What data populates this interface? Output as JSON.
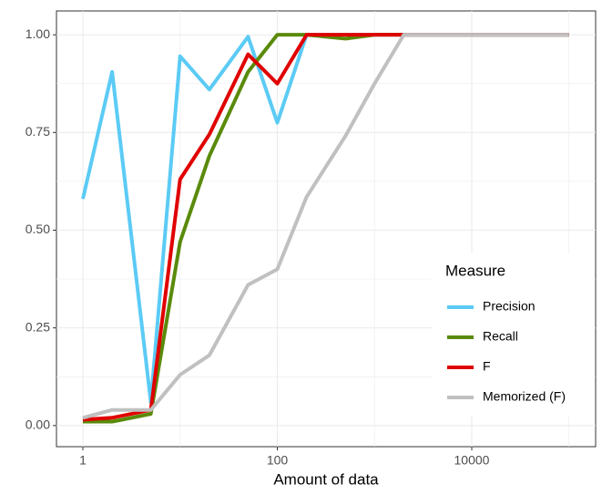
{
  "chart_data": {
    "type": "line",
    "x_label": "Amount of data",
    "x": [
      1,
      2,
      5,
      10,
      20,
      50,
      100,
      200,
      500,
      1000,
      2000,
      5000,
      10000,
      20000,
      50000,
      100000
    ],
    "xscale": "log",
    "xlim": [
      0.535,
      188000
    ],
    "xticks": [
      1,
      100,
      10000
    ],
    "ylim": [
      -0.054,
      1.061
    ],
    "yticks": [
      {
        "value": 0,
        "label": "0.00"
      },
      {
        "value": 0.25,
        "label": "0.25"
      },
      {
        "value": 0.5,
        "label": "0.50"
      },
      {
        "value": 0.75,
        "label": "0.75"
      },
      {
        "value": 1,
        "label": "1.00"
      }
    ],
    "grid": true,
    "legend_title": "Measure",
    "legend_position": "bottom-right",
    "series": [
      {
        "name": "Precision",
        "color": "#5bcbf5",
        "values": [
          0.58,
          0.905,
          0.06,
          0.945,
          0.86,
          0.995,
          0.775,
          1.0,
          1.0,
          1.0,
          1.0,
          1.0,
          1.0,
          1.0,
          1.0,
          1.0
        ]
      },
      {
        "name": "Recall",
        "color": "#5a8a0a",
        "values": [
          0.01,
          0.01,
          0.03,
          0.47,
          0.69,
          0.905,
          1.0,
          1.0,
          0.99,
          1.0,
          1.0,
          1.0,
          1.0,
          1.0,
          1.0,
          1.0
        ]
      },
      {
        "name": "F",
        "color": "#e00000",
        "values": [
          0.015,
          0.02,
          0.04,
          0.63,
          0.745,
          0.95,
          0.875,
          1.0,
          1.0,
          1.0,
          1.0,
          1.0,
          1.0,
          1.0,
          1.0,
          1.0
        ]
      },
      {
        "name": "Memorized (F)",
        "color": "#c0c0c0",
        "values": [
          0.02,
          0.04,
          0.04,
          0.13,
          0.18,
          0.36,
          0.4,
          0.585,
          0.74,
          0.875,
          1.0,
          1.0,
          1.0,
          1.0,
          1.0,
          1.0
        ]
      }
    ]
  }
}
